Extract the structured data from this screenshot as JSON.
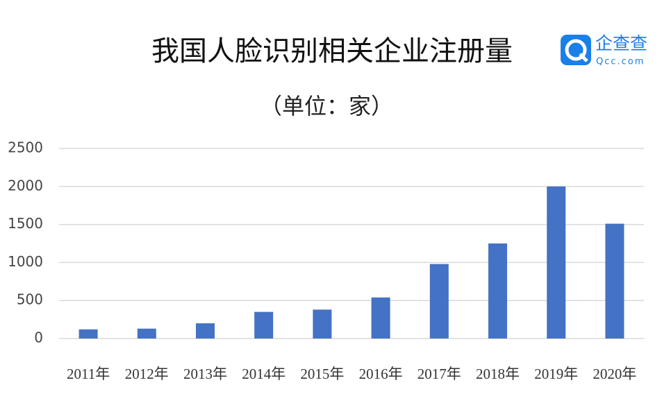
{
  "chart_data": {
    "type": "bar",
    "title": "我国人脸识别相关企业注册量",
    "subtitle": "（单位：家）",
    "logo_text": "企查查",
    "logo_subtext": "Qcc.com",
    "categories": [
      "2011年",
      "2012年",
      "2013年",
      "2014年",
      "2015年",
      "2016年",
      "2017年",
      "2018年",
      "2019年",
      "2020年"
    ],
    "values": [
      120,
      130,
      200,
      350,
      380,
      540,
      980,
      1250,
      2000,
      1510
    ],
    "color": "#4472c4",
    "ylim": [
      0,
      2500
    ],
    "yticks": [
      0,
      500,
      1000,
      1500,
      2000,
      2500
    ],
    "grid": true
  }
}
